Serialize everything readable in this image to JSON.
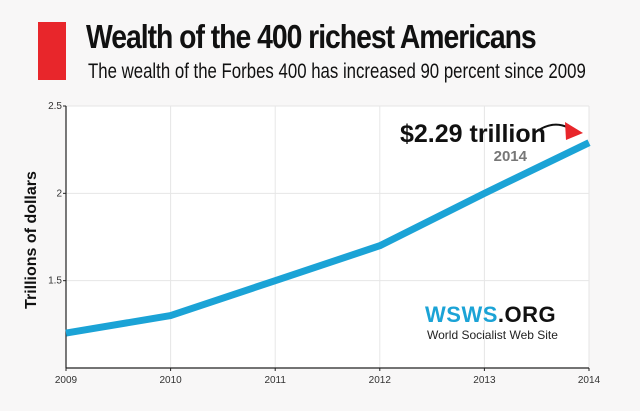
{
  "header": {
    "title": "Wealth of the 400 richest Americans",
    "subtitle": "The wealth of the Forbes 400 has increased 90 percent since 2009",
    "accent": "#e8262b"
  },
  "chart_data": {
    "type": "line",
    "title": "Wealth of the 400 richest Americans",
    "subtitle": "The wealth of the Forbes 400 has increased 90 percent since 2009",
    "xlabel": "",
    "ylabel": "Trillions of dollars",
    "x": [
      2009,
      2010,
      2011,
      2012,
      2013,
      2014
    ],
    "series": [
      {
        "values": [
          1.2,
          1.3,
          1.5,
          1.7,
          2.0,
          2.29
        ],
        "color": "#1ba3d6"
      }
    ],
    "xlim": [
      2009,
      2014
    ],
    "ylim": [
      1.0,
      2.5
    ],
    "yticks": [
      "1.5",
      "2",
      "2.5"
    ],
    "xticks": [
      "2009",
      "2010",
      "2011",
      "2012",
      "2013",
      "2014"
    ],
    "grid": true,
    "annotation": {
      "value": "$2.29 trillion",
      "year": "2014",
      "arrow_color": "#e8262b"
    }
  },
  "logo": {
    "part1": "WSWS",
    "part2": ".ORG",
    "tagline": "World Socialist Web Site"
  }
}
